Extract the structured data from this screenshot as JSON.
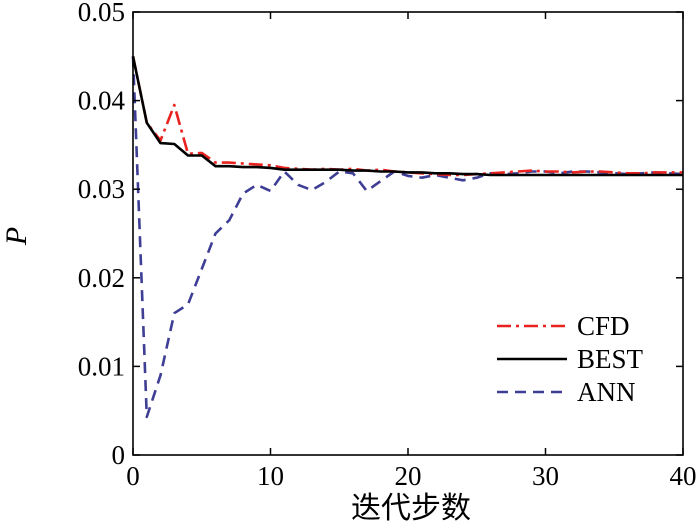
{
  "chart_data": {
    "type": "line",
    "xlabel": "迭代步数",
    "ylabel": "P",
    "xlim": [
      0,
      40
    ],
    "ylim": [
      0,
      0.05
    ],
    "xticks": [
      0,
      10,
      20,
      30,
      40
    ],
    "xtick_labels": [
      "0",
      "10",
      "20",
      "30",
      "40"
    ],
    "yticks": [
      0,
      0.01,
      0.02,
      0.03,
      0.04,
      0.05
    ],
    "ytick_labels": [
      "0",
      "0.01",
      "0.02",
      "0.03",
      "0.04",
      "0.05"
    ],
    "grid": false,
    "legend_position": "bottom-right",
    "series": [
      {
        "name": "CFD",
        "color": "#e8231f",
        "dash": "dashdot",
        "x": [
          0,
          1,
          2,
          3,
          4,
          5,
          6,
          7,
          8,
          9,
          10,
          11,
          12,
          13,
          14,
          15,
          16,
          17,
          18,
          19,
          20,
          21,
          22,
          23,
          24,
          25,
          26,
          27,
          28,
          29,
          30,
          31,
          32,
          33,
          34,
          35,
          36,
          37,
          38,
          39,
          40
        ],
        "y": [
          0.045,
          0.0375,
          0.0355,
          0.0395,
          0.034,
          0.0341,
          0.033,
          0.033,
          0.0329,
          0.0328,
          0.0327,
          0.0324,
          0.0323,
          0.0322,
          0.0323,
          0.0322,
          0.0323,
          0.0321,
          0.0322,
          0.032,
          0.0319,
          0.0318,
          0.0317,
          0.0316,
          0.0316,
          0.0317,
          0.0318,
          0.0319,
          0.032,
          0.0321,
          0.032,
          0.032,
          0.0319,
          0.032,
          0.032,
          0.0319,
          0.0318,
          0.0318,
          0.0319,
          0.0319,
          0.0319
        ]
      },
      {
        "name": "BEST",
        "color": "#000000",
        "dash": "solid",
        "x": [
          0,
          1,
          2,
          3,
          4,
          5,
          6,
          7,
          8,
          9,
          10,
          11,
          12,
          13,
          14,
          15,
          16,
          17,
          18,
          19,
          20,
          21,
          22,
          23,
          24,
          25,
          26,
          27,
          28,
          29,
          30,
          31,
          32,
          33,
          34,
          35,
          36,
          37,
          38,
          39,
          40
        ],
        "y": [
          0.045,
          0.0375,
          0.0352,
          0.0351,
          0.0338,
          0.0338,
          0.0326,
          0.0326,
          0.0325,
          0.0325,
          0.0324,
          0.0322,
          0.0322,
          0.0322,
          0.0322,
          0.0322,
          0.0321,
          0.0321,
          0.032,
          0.032,
          0.0319,
          0.0319,
          0.0318,
          0.0318,
          0.0317,
          0.0317,
          0.0316,
          0.0316,
          0.0316,
          0.0316,
          0.0316,
          0.0316,
          0.0316,
          0.0316,
          0.0316,
          0.0316,
          0.0316,
          0.0316,
          0.0316,
          0.0316,
          0.0316
        ]
      },
      {
        "name": "ANN",
        "color": "#3e3e95",
        "dash": "dashed",
        "x": [
          0,
          1,
          2,
          3,
          4,
          5,
          6,
          7,
          8,
          9,
          10,
          11,
          12,
          13,
          14,
          15,
          16,
          17,
          18,
          19,
          20,
          21,
          22,
          23,
          24,
          25,
          26,
          27,
          28,
          29,
          30,
          31,
          32,
          33,
          34,
          35,
          36,
          37,
          38,
          39,
          40
        ],
        "y": [
          0.045,
          0.0043,
          0.009,
          0.016,
          0.017,
          0.021,
          0.025,
          0.0265,
          0.0295,
          0.0305,
          0.0298,
          0.032,
          0.0305,
          0.0299,
          0.0308,
          0.032,
          0.0318,
          0.0298,
          0.0309,
          0.032,
          0.0315,
          0.0313,
          0.0316,
          0.0313,
          0.031,
          0.0313,
          0.0318,
          0.0317,
          0.0318,
          0.032,
          0.032,
          0.0318,
          0.032,
          0.032,
          0.0319,
          0.0318,
          0.0317,
          0.0318,
          0.0319,
          0.0318,
          0.0317
        ]
      }
    ]
  }
}
